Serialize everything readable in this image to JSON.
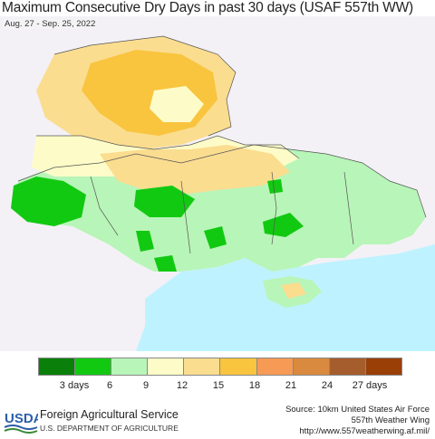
{
  "title": "Maximum Consecutive Dry Days in past 30 days (USAF 557th WW)",
  "subtitle": "Aug. 27 - Sep. 25, 2022",
  "legend": {
    "colors": [
      "#0a7f0a",
      "#12c912",
      "#b8f5b8",
      "#fdfcc8",
      "#fbdd90",
      "#f9c43e",
      "#f79a55",
      "#d98a3f",
      "#a55d2e",
      "#9a3f06"
    ],
    "labels": [
      {
        "text": "3 days",
        "value": 3
      },
      {
        "text": "6",
        "value": 6
      },
      {
        "text": "9",
        "value": 9
      },
      {
        "text": "12",
        "value": 12
      },
      {
        "text": "15",
        "value": 15
      },
      {
        "text": "18",
        "value": 18
      },
      {
        "text": "21",
        "value": 21
      },
      {
        "text": "24",
        "value": 24
      },
      {
        "text": "27 days",
        "value": 27
      }
    ]
  },
  "footer": {
    "logo_text": "USDA",
    "agency": "Foreign Agricultural Service",
    "department": "U.S. DEPARTMENT OF AGRICULTURE",
    "source_line1": "Source: 10km United States Air Force",
    "source_line2": "557th Weather Wing",
    "source_line3": "http://www.557weatherwing.af.mil/"
  },
  "map_colors": {
    "background": "#f3f1f6",
    "sea": "#bff2ff",
    "border": "#555555"
  }
}
